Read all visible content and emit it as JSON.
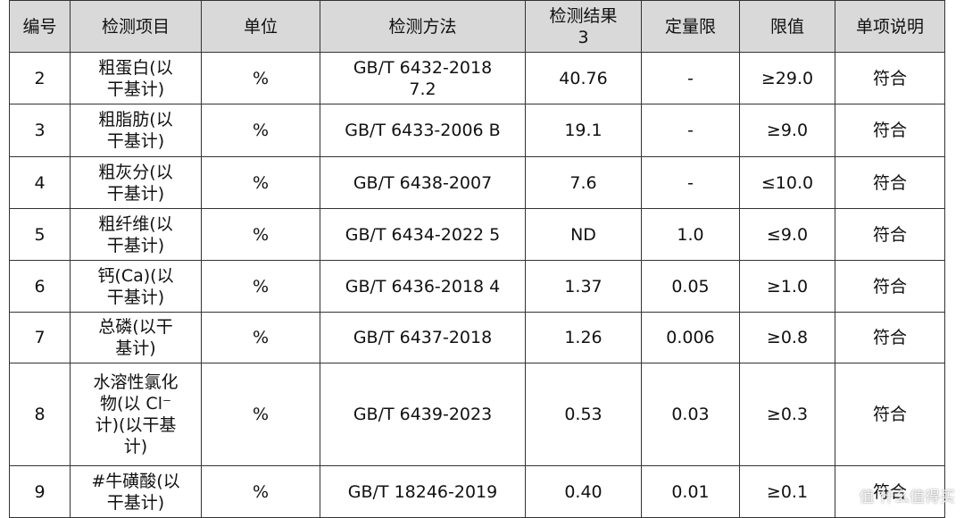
{
  "table": {
    "headers": [
      "编号",
      "检测项目",
      "单位",
      "检测方法",
      "检测结果\n3",
      "定量限",
      "限值",
      "单项说明"
    ],
    "rows": [
      [
        "2",
        "粗蛋白(以\n干基计)",
        "%",
        "GB/T 6432-2018\n7.2",
        "40.76",
        "-",
        "≥29.0",
        "符合"
      ],
      [
        "3",
        "粗脂肪(以\n干基计)",
        "%",
        "GB/T 6433-2006 B",
        "19.1",
        "-",
        "≥9.0",
        "符合"
      ],
      [
        "4",
        "粗灰分(以\n干基计)",
        "%",
        "GB/T 6438-2007",
        "7.6",
        "-",
        "≤10.0",
        "符合"
      ],
      [
        "5",
        "粗纤维(以\n干基计)",
        "%",
        "GB/T 6434-2022 5",
        "ND",
        "1.0",
        "≤9.0",
        "符合"
      ],
      [
        "6",
        "钙(Ca)(以\n干基计)",
        "%",
        "GB/T 6436-2018 4",
        "1.37",
        "0.05",
        "≥1.0",
        "符合"
      ],
      [
        "7",
        "总磷(以干\n基计)",
        "%",
        "GB/T 6437-2018",
        "1.26",
        "0.006",
        "≥0.8",
        "符合"
      ],
      [
        "8",
        "水溶性氯化\n物(以 Cl⁻\n计)(以干基\n计)",
        "%",
        "GB/T 6439-2023",
        "0.53",
        "0.03",
        "≥0.3",
        "符合"
      ],
      [
        "9",
        "#牛磺酸(以\n干基计)",
        "%",
        "GB/T 18246-2019",
        "0.40",
        "0.01",
        "≥0.1",
        "符合"
      ]
    ]
  },
  "watermark": "值 什么值得买"
}
